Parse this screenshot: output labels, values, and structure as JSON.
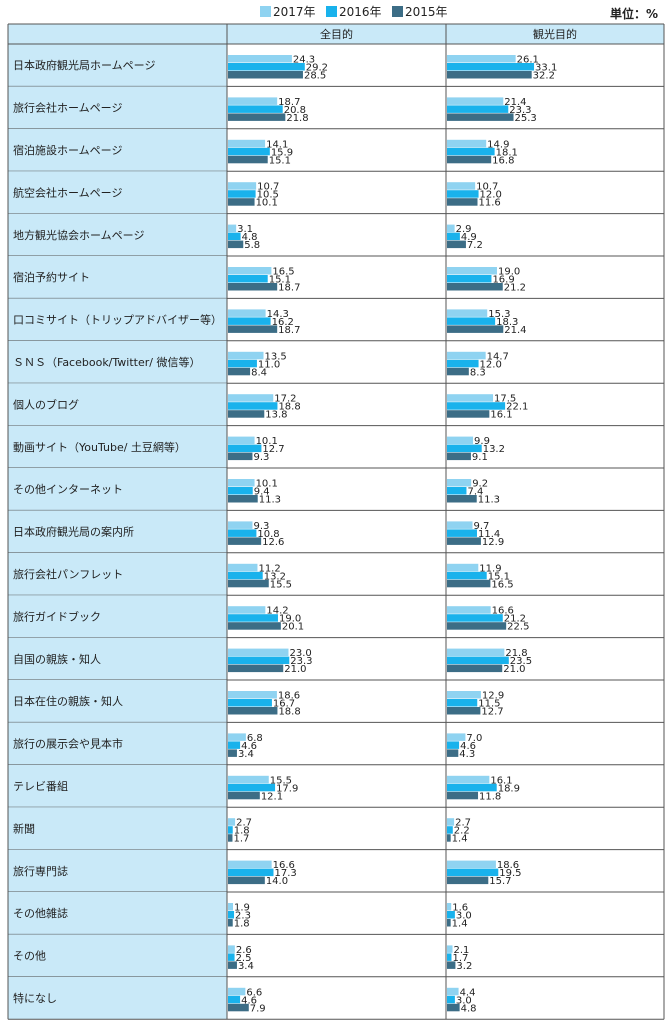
{
  "legend": {
    "unit": "単位：%"
  },
  "colors": {
    "s2017": "#8fd3f1",
    "s2016": "#19b2ec",
    "s2015": "#3c6d86",
    "label_bg": "#c9e9f8",
    "header_bg": "#c9e9f8",
    "border": "#555555"
  },
  "chart_data": {
    "type": "bar",
    "orientation": "horizontal",
    "panels": [
      "全目的",
      "観光目的"
    ],
    "series_names": [
      "2017年",
      "2016年",
      "2015年"
    ],
    "categories": [
      "日本政府観光局ホームページ",
      "旅行会社ホームページ",
      "宿泊施設ホームページ",
      "航空会社ホームページ",
      "地方観光協会ホームページ",
      "宿泊予約サイト",
      "口コミサイト（トリップアドバイザー等）",
      "ＳＮＳ（Facebook/Twitter/ 微信等）",
      "個人のブログ",
      "動画サイト（YouTube/ 土豆網等）",
      "その他インターネット",
      "日本政府観光局の案内所",
      "旅行会社パンフレット",
      "旅行ガイドブック",
      "自国の親族・知人",
      "日本在住の親族・知人",
      "旅行の展示会や見本市",
      "テレビ番組",
      "新聞",
      "旅行専門誌",
      "その他雑誌",
      "その他",
      "特になし"
    ],
    "series": [
      {
        "name": "2017年",
        "all": [
          24.3,
          18.7,
          14.1,
          10.7,
          3.1,
          16.5,
          14.3,
          13.5,
          17.2,
          10.1,
          10.1,
          9.3,
          11.2,
          14.2,
          23.0,
          18.6,
          6.8,
          15.5,
          2.7,
          16.6,
          1.9,
          2.6,
          6.6
        ],
        "tourism": [
          26.1,
          21.4,
          14.9,
          10.7,
          2.9,
          19.0,
          15.3,
          14.7,
          17.5,
          9.9,
          9.2,
          9.7,
          11.9,
          16.6,
          21.8,
          12.9,
          7.0,
          16.1,
          2.7,
          18.6,
          1.6,
          2.1,
          4.4
        ]
      },
      {
        "name": "2016年",
        "all": [
          29.2,
          20.8,
          15.9,
          10.5,
          4.8,
          15.1,
          16.2,
          11.0,
          18.8,
          12.7,
          9.4,
          10.8,
          13.2,
          19.0,
          23.3,
          16.7,
          4.6,
          17.9,
          1.8,
          17.3,
          2.3,
          2.5,
          4.6
        ],
        "tourism": [
          33.1,
          23.3,
          18.1,
          12.0,
          4.9,
          16.9,
          18.3,
          12.0,
          22.1,
          13.2,
          7.4,
          11.4,
          15.1,
          21.2,
          23.5,
          11.5,
          4.6,
          18.9,
          2.2,
          19.5,
          3.0,
          1.7,
          3.0
        ]
      },
      {
        "name": "2015年",
        "all": [
          28.5,
          21.8,
          15.1,
          10.1,
          5.8,
          18.7,
          18.7,
          8.4,
          13.8,
          9.3,
          11.3,
          12.6,
          15.5,
          20.1,
          21.0,
          18.8,
          3.4,
          12.1,
          1.7,
          14.0,
          1.8,
          3.4,
          7.9
        ],
        "tourism": [
          32.2,
          25.3,
          16.8,
          11.6,
          7.2,
          21.2,
          21.4,
          8.3,
          16.1,
          9.1,
          11.3,
          12.9,
          16.5,
          22.5,
          21.0,
          12.7,
          4.3,
          11.8,
          1.4,
          15.7,
          1.4,
          3.2,
          4.8
        ]
      }
    ],
    "xlim": [
      0,
      40
    ],
    "legend_position": "top",
    "grid": false
  }
}
